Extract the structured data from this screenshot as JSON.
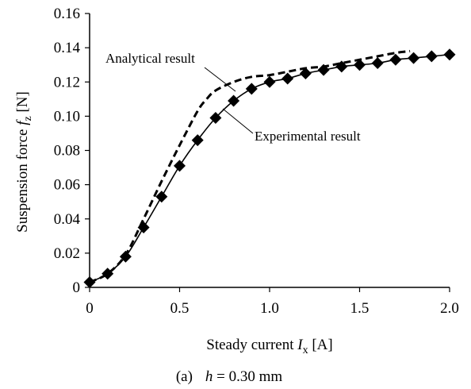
{
  "chart_data": {
    "type": "line",
    "xlabel_prefix": "Steady current ",
    "xlabel_var": "I",
    "xlabel_sub": "x",
    "xlabel_suffix": " [A]",
    "ylabel_prefix": "Suspension force ",
    "ylabel_var": "f",
    "ylabel_sub": "z",
    "ylabel_suffix": " [N]",
    "xlim": [
      0,
      2.0
    ],
    "ylim": [
      0,
      0.16
    ],
    "x_ticks": [
      "0",
      "0.5",
      "1.0",
      "1.5",
      "2.0"
    ],
    "y_ticks": [
      "0",
      "0.02",
      "0.04",
      "0.06",
      "0.08",
      "0.10",
      "0.12",
      "0.14",
      "0.16"
    ],
    "grid": false,
    "series": [
      {
        "name": "Experimental result",
        "style": "solid line with diamond markers",
        "x": [
          0,
          0.1,
          0.2,
          0.3,
          0.4,
          0.5,
          0.6,
          0.7,
          0.8,
          0.9,
          1.0,
          1.1,
          1.2,
          1.3,
          1.4,
          1.5,
          1.6,
          1.7,
          1.8,
          1.9,
          2.0
        ],
        "y": [
          0.003,
          0.008,
          0.018,
          0.035,
          0.053,
          0.071,
          0.086,
          0.099,
          0.109,
          0.116,
          0.12,
          0.122,
          0.125,
          0.127,
          0.129,
          0.13,
          0.131,
          0.133,
          0.134,
          0.135,
          0.136
        ]
      },
      {
        "name": "Analytical result",
        "style": "dashed line",
        "x": [
          0,
          0.1,
          0.2,
          0.3,
          0.4,
          0.5,
          0.6,
          0.65,
          0.7,
          0.8,
          0.9,
          1.0,
          1.1,
          1.2,
          1.3,
          1.4,
          1.5,
          1.6,
          1.7,
          1.78
        ],
        "y": [
          0.003,
          0.008,
          0.019,
          0.04,
          0.062,
          0.083,
          0.103,
          0.11,
          0.115,
          0.12,
          0.123,
          0.124,
          0.126,
          0.128,
          0.129,
          0.131,
          0.133,
          0.135,
          0.137,
          0.138
        ]
      }
    ],
    "annotations": [
      "Analytical result",
      "Experimental result"
    ],
    "caption_label": "(a)",
    "caption_var": "h",
    "caption_value": " = 0.30 mm"
  }
}
